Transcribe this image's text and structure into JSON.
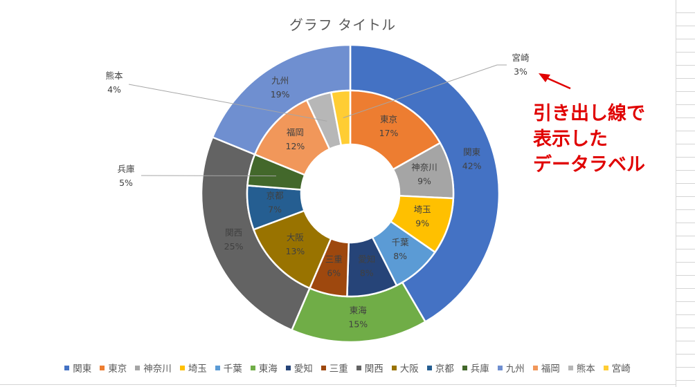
{
  "title": "グラフ タイトル",
  "chart_data": {
    "type": "doughnut",
    "title": "グラフ タイトル",
    "legend_position": "bottom",
    "outer_ring": [
      {
        "label": "関東",
        "value": 42,
        "percent_label": "42%",
        "color": "#4472C4"
      },
      {
        "label": "東海",
        "value": 15,
        "percent_label": "15%",
        "color": "#70AD47"
      },
      {
        "label": "関西",
        "value": 25,
        "percent_label": "25%",
        "color": "#636363"
      },
      {
        "label": "九州",
        "value": 19,
        "percent_label": "19%",
        "color": "#6F8FD0"
      }
    ],
    "inner_ring": [
      {
        "label": "東京",
        "value": 17,
        "percent_label": "17%",
        "color": "#ED7D31"
      },
      {
        "label": "神奈川",
        "value": 9,
        "percent_label": "9%",
        "color": "#A5A5A5"
      },
      {
        "label": "埼玉",
        "value": 9,
        "percent_label": "9%",
        "color": "#FFC000"
      },
      {
        "label": "千葉",
        "value": 8,
        "percent_label": "8%",
        "color": "#5B9BD5"
      },
      {
        "label": "愛知",
        "value": 8,
        "percent_label": "8%",
        "color": "#264478"
      },
      {
        "label": "三重",
        "value": 6,
        "percent_label": "6%",
        "color": "#9E480E"
      },
      {
        "label": "大阪",
        "value": 13,
        "percent_label": "13%",
        "color": "#997300"
      },
      {
        "label": "京都",
        "value": 7,
        "percent_label": "7%",
        "color": "#255E91"
      },
      {
        "label": "兵庫",
        "value": 5,
        "percent_label": "5%",
        "color": "#43682B"
      },
      {
        "label": "福岡",
        "value": 12,
        "percent_label": "12%",
        "color": "#F1975A"
      },
      {
        "label": "熊本",
        "value": 4,
        "percent_label": "4%",
        "color": "#B7B7B7"
      },
      {
        "label": "宮崎",
        "value": 3,
        "percent_label": "3%",
        "color": "#FFCD33"
      }
    ],
    "leader_line_labels": [
      "宮崎",
      "熊本",
      "兵庫"
    ]
  },
  "legend": [
    {
      "label": "関東",
      "color": "#4472C4"
    },
    {
      "label": "東京",
      "color": "#ED7D31"
    },
    {
      "label": "神奈川",
      "color": "#A5A5A5"
    },
    {
      "label": "埼玉",
      "color": "#FFC000"
    },
    {
      "label": "千葉",
      "color": "#5B9BD5"
    },
    {
      "label": "東海",
      "color": "#70AD47"
    },
    {
      "label": "愛知",
      "color": "#264478"
    },
    {
      "label": "三重",
      "color": "#9E480E"
    },
    {
      "label": "関西",
      "color": "#636363"
    },
    {
      "label": "大阪",
      "color": "#997300"
    },
    {
      "label": "京都",
      "color": "#255E91"
    },
    {
      "label": "兵庫",
      "color": "#43682B"
    },
    {
      "label": "九州",
      "color": "#6F8FD0"
    },
    {
      "label": "福岡",
      "color": "#F1975A"
    },
    {
      "label": "熊本",
      "color": "#B7B7B7"
    },
    {
      "label": "宮崎",
      "color": "#FFCD33"
    }
  ],
  "annotation": {
    "lines": [
      "引き出し線で",
      "表示した",
      "データラベル"
    ],
    "color": "#e00000"
  }
}
